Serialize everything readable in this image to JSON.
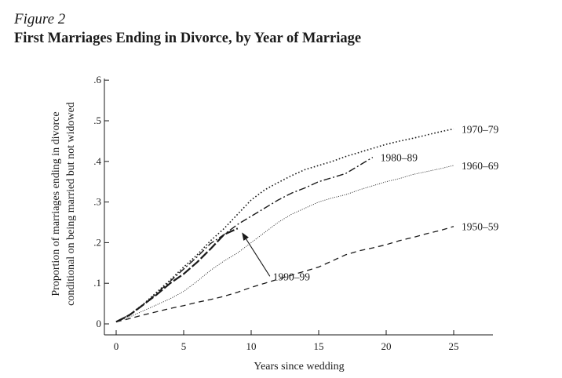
{
  "figure": {
    "label": "Figure 2",
    "title": "First Marriages Ending in Divorce, by Year of Marriage"
  },
  "chart_data": {
    "type": "line",
    "title": "First Marriages Ending in Divorce, by Year of Marriage",
    "xlabel": "Years since wedding",
    "ylabel_lines": [
      "Proportion of marriages ending in divorce",
      "conditional on being married but not widowed"
    ],
    "xlim": [
      -1,
      28
    ],
    "ylim": [
      0,
      0.6
    ],
    "xticks": [
      0,
      5,
      10,
      15,
      20,
      25
    ],
    "xtick_labels": [
      "0",
      "5",
      "10",
      "15",
      "20",
      "25"
    ],
    "yticks": [
      0,
      0.1,
      0.2,
      0.3,
      0.4,
      0.5,
      0.6
    ],
    "ytick_labels": [
      "0",
      ".1",
      ".2",
      ".3",
      ".4",
      ".5",
      ".6"
    ],
    "grid": false,
    "legend": "direct labels at line ends",
    "series": [
      {
        "name": "1950–59",
        "style": "dashed",
        "x": [
          0,
          1,
          2,
          3,
          4,
          5,
          6,
          7,
          8,
          9,
          10,
          11,
          12,
          13,
          14,
          15,
          16,
          17,
          18,
          19,
          20,
          21,
          22,
          23,
          24,
          25
        ],
        "y": [
          0.005,
          0.013,
          0.022,
          0.03,
          0.038,
          0.045,
          0.053,
          0.06,
          0.068,
          0.078,
          0.09,
          0.1,
          0.11,
          0.12,
          0.13,
          0.14,
          0.155,
          0.17,
          0.18,
          0.187,
          0.195,
          0.205,
          0.213,
          0.222,
          0.23,
          0.24
        ]
      },
      {
        "name": "1960–69",
        "style": "dotted-thin",
        "x": [
          0,
          1,
          2,
          3,
          4,
          5,
          6,
          7,
          8,
          9,
          10,
          11,
          12,
          13,
          14,
          15,
          16,
          17,
          18,
          19,
          20,
          21,
          22,
          23,
          24,
          25
        ],
        "y": [
          0.005,
          0.017,
          0.032,
          0.047,
          0.062,
          0.08,
          0.105,
          0.132,
          0.155,
          0.175,
          0.2,
          0.225,
          0.25,
          0.27,
          0.285,
          0.3,
          0.31,
          0.318,
          0.33,
          0.34,
          0.35,
          0.358,
          0.368,
          0.375,
          0.382,
          0.39
        ]
      },
      {
        "name": "1970–79",
        "style": "dotted",
        "x": [
          0,
          1,
          2,
          3,
          4,
          5,
          6,
          7,
          8,
          9,
          10,
          11,
          12,
          13,
          14,
          15,
          16,
          17,
          18,
          19,
          20,
          21,
          22,
          23,
          24,
          25
        ],
        "y": [
          0.005,
          0.023,
          0.048,
          0.078,
          0.108,
          0.14,
          0.17,
          0.205,
          0.235,
          0.27,
          0.305,
          0.33,
          0.348,
          0.365,
          0.38,
          0.39,
          0.4,
          0.412,
          0.422,
          0.432,
          0.442,
          0.45,
          0.457,
          0.465,
          0.473,
          0.48
        ]
      },
      {
        "name": "1980–89",
        "style": "dash-dot",
        "x": [
          0,
          1,
          2,
          3,
          4,
          5,
          6,
          7,
          8,
          9,
          10,
          11,
          12,
          13,
          14,
          15,
          16,
          17,
          18,
          19
        ],
        "y": [
          0.005,
          0.023,
          0.047,
          0.075,
          0.105,
          0.135,
          0.165,
          0.198,
          0.22,
          0.245,
          0.265,
          0.285,
          0.305,
          0.322,
          0.335,
          0.35,
          0.36,
          0.37,
          0.39,
          0.41
        ]
      },
      {
        "name": "1990–99",
        "style": "long-dash",
        "x": [
          0,
          1,
          2,
          3,
          4,
          5,
          6,
          7,
          8,
          9
        ],
        "y": [
          0.005,
          0.022,
          0.047,
          0.072,
          0.1,
          0.123,
          0.152,
          0.185,
          0.22,
          0.235
        ]
      }
    ],
    "labels": [
      {
        "series": "1970–79",
        "text": "1970–79"
      },
      {
        "series": "1980–89",
        "text": "1980–89"
      },
      {
        "series": "1960–69",
        "text": "1960–69"
      },
      {
        "series": "1950–59",
        "text": "1950–59"
      },
      {
        "series": "1990–99",
        "text": "1990–99",
        "arrow": true
      }
    ]
  }
}
